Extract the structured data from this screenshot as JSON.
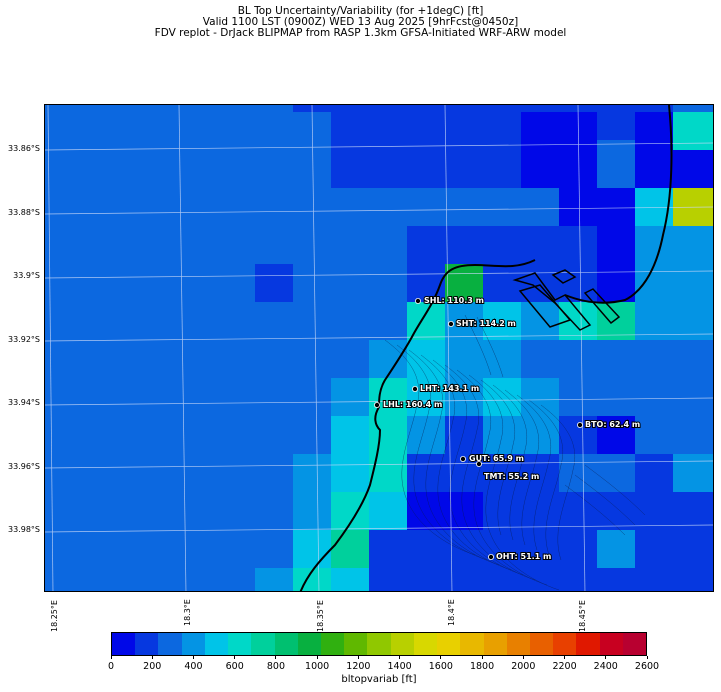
{
  "title": {
    "line1": "BL Top Uncertainty/Variability (for +1degC) [ft]",
    "line2": "Valid 1100 LST (0900Z) WED 13 Aug 2025 [9hrFcst@0450z]",
    "line3": "FDV replot - DrJack BLIPMAP from RASP 1.3km GFSA-Initiated WRF-ARW model"
  },
  "lat_labels": [
    "33.86°S",
    "33.88°S",
    "33.9°S",
    "33.92°S",
    "33.94°S",
    "33.96°S",
    "33.98°S"
  ],
  "lon_labels": [
    "18.25°E",
    "18.3°E",
    "18.35°E",
    "18.4°E",
    "18.45°E"
  ],
  "stations": [
    {
      "name": "SHL",
      "label": "SHL: 110.3 m"
    },
    {
      "name": "SHT",
      "label": "SHT: 114.2 m"
    },
    {
      "name": "LHT",
      "label": "LHT: 143.1 m"
    },
    {
      "name": "LHL",
      "label": "LHL: 160.4 m"
    },
    {
      "name": "BTO",
      "label": "BTO: 62.4 m"
    },
    {
      "name": "GUT",
      "label": "GUT: 65.9 m"
    },
    {
      "name": "TMT",
      "label": "TMT: 55.2 m"
    },
    {
      "name": "OHT",
      "label": "OHT: 51.1 m"
    }
  ],
  "colorbar": {
    "label": "bltopvariab [ft]",
    "ticks": [
      "0",
      "200",
      "400",
      "600",
      "800",
      "1000",
      "1200",
      "1400",
      "1600",
      "1800",
      "2000",
      "2200",
      "2400",
      "2600"
    ],
    "colors": [
      "#0008e8",
      "#0638e0",
      "#0c68e0",
      "#0494e4",
      "#00c4e8",
      "#00d8c8",
      "#00d09c",
      "#00c070",
      "#08b040",
      "#30b010",
      "#60b800",
      "#90c800",
      "#b8d000",
      "#d8d800",
      "#e8d000",
      "#e8b800",
      "#e8a000",
      "#e88000",
      "#e86000",
      "#e84000",
      "#e01800",
      "#c80020",
      "#b80030"
    ]
  },
  "map": {
    "ocean_color": "#0c68e0",
    "grid": [
      "..........................DDDDDA",
      "...........BBBBBBBBBCCCCCCDDDDDF",
      "...........BBBBBBBBBCCCCCCD.DDDF",
      "...........BBBBBBBBBBBBBBBDEDDDF",
      "..........................EDDEEH",
      "...................BBBBBBBB.DEEH",
      "..........C.........BBBBBBBB.EE.",
      "...........C.........BBBBBBFE..D",
      "................................",
      "................ABBAABBBBBCBEE..",
      "................EEEEEEBBBBEEBBEE",
      "..........................EEEE..",
      "................................",
      "...........................BBBBB"
    ]
  }
}
